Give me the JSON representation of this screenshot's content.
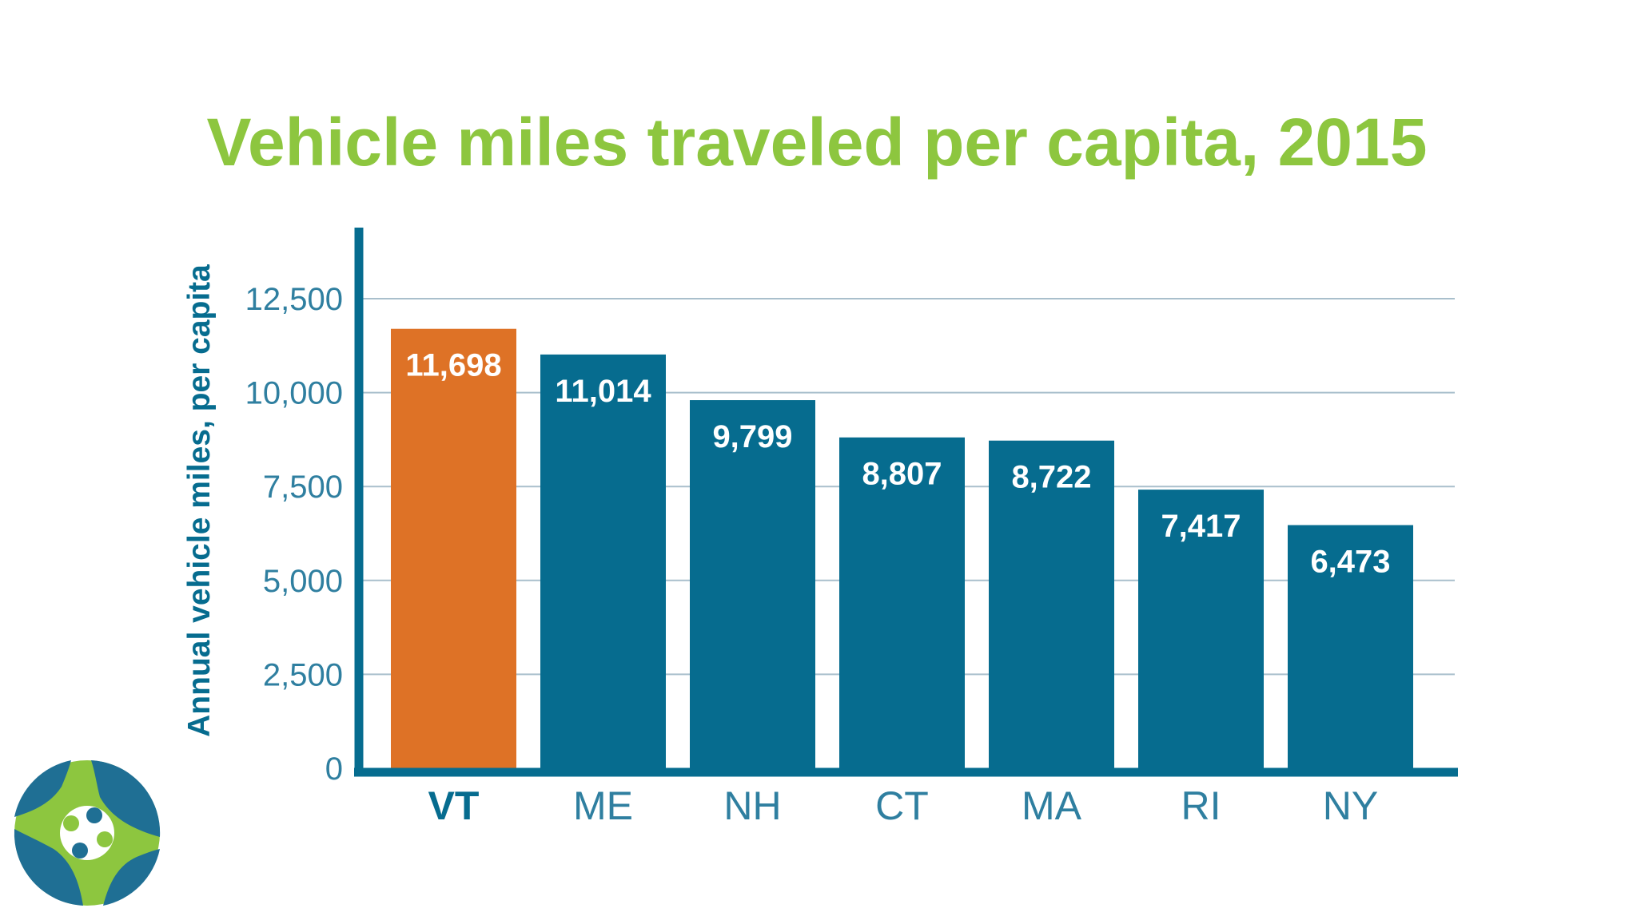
{
  "colors": {
    "title": "#8dc63f",
    "bar": "#066c8f",
    "highlight_bar": "#de7226",
    "axis": "#066c8f",
    "gridline": "#a9bfcc",
    "tick_text": "#2f7fa0",
    "value_text": "#ffffff",
    "logo_green": "#8dc63f",
    "logo_blue": "#1f6f94"
  },
  "logo": {
    "icon": "pinwheel-logo-icon"
  },
  "chart_data": {
    "type": "bar",
    "title": "Vehicle miles traveled per capita, 2015",
    "xlabel": "",
    "ylabel": "Annual vehicle miles, per capita",
    "categories": [
      "VT",
      "ME",
      "NH",
      "CT",
      "MA",
      "RI",
      "NY"
    ],
    "values": [
      11698,
      11014,
      9799,
      8807,
      8722,
      7417,
      6473
    ],
    "value_labels": [
      "11,698",
      "11,014",
      "9,799",
      "8,807",
      "8,722",
      "7,417",
      "6,473"
    ],
    "highlight": "VT",
    "ylim": [
      0,
      12500
    ],
    "yticks": [
      0,
      2500,
      5000,
      7500,
      10000,
      12500
    ],
    "ytick_labels": [
      "0",
      "2,500",
      "5,000",
      "7,500",
      "10,000",
      "12,500"
    ],
    "grid": true,
    "legend": "none"
  }
}
